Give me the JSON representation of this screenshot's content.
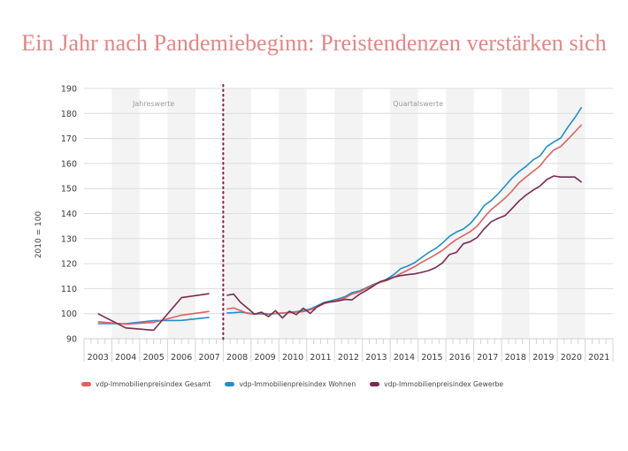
{
  "title": "Ein Jahr nach Pandemiebeginn: Preistendenzen verstärken sich",
  "chart_data": {
    "type": "line",
    "title": "Ein Jahr nach Pandemiebeginn: Preistendenzen verstärken sich",
    "ylabel": "2010 = 100",
    "xlabel": "",
    "ylim": [
      90,
      190
    ],
    "yticks": [
      90,
      100,
      110,
      120,
      130,
      140,
      150,
      160,
      170,
      180,
      190
    ],
    "xticks": [
      "2003",
      "2004",
      "2005",
      "2006",
      "2007",
      "2008",
      "2009",
      "2010",
      "2011",
      "2012",
      "2013",
      "2014",
      "2015",
      "2016",
      "2017",
      "2018",
      "2019",
      "2020",
      "2021"
    ],
    "grid": true,
    "legend_position": "bottom-left",
    "annotations": [
      "Jahreswerte",
      "Quartalswerte"
    ],
    "divider_after": "2007",
    "annual": {
      "x": [
        2003,
        2004,
        2005,
        2006,
        2007
      ],
      "series": [
        {
          "name": "vdp-Immobilienpreisindex Gesamt",
          "color": "#e06060",
          "values": [
            96.8,
            95.8,
            96.5,
            99.4,
            100.9
          ]
        },
        {
          "name": "vdp-Immobilienpreisindex Wohnen",
          "color": "#1e90c8",
          "values": [
            96.0,
            96.0,
            97.2,
            97.3,
            98.5
          ]
        },
        {
          "name": "vdp-Immobilienpreisindex Gewerbe",
          "color": "#7b2a50",
          "values": [
            100.0,
            94.3,
            93.4,
            106.4,
            108.0
          ]
        }
      ]
    },
    "quarterly": {
      "start": "2008 Q1",
      "series": [
        {
          "name": "vdp-Immobilienpreisindex Gesamt",
          "color": "#e06060",
          "values": [
            101.8,
            102.3,
            101.2,
            100.1,
            99.8,
            100.2,
            99.9,
            100.1,
            100.3,
            100.4,
            100.6,
            100.8,
            101.5,
            102.6,
            104.0,
            104.8,
            105.4,
            106.3,
            107.8,
            108.6,
            110.0,
            111.3,
            112.4,
            113.3,
            114.5,
            116.0,
            117.4,
            118.8,
            120.5,
            122.0,
            123.6,
            125.3,
            127.6,
            129.6,
            131.2,
            132.8,
            135.0,
            138.5,
            141.6,
            143.8,
            146.2,
            149.0,
            152.3,
            154.6,
            156.8,
            159.0,
            162.5,
            165.4,
            166.8,
            169.6,
            172.5,
            175.5
          ]
        },
        {
          "name": "vdp-Immobilienpreisindex Wohnen",
          "color": "#1e90c8",
          "values": [
            100.3,
            100.4,
            100.6,
            100.3,
            99.9,
            99.9,
            99.8,
            100.0,
            100.2,
            100.5,
            100.8,
            101.2,
            101.9,
            103.1,
            104.5,
            105.2,
            105.9,
            106.8,
            108.4,
            109.0,
            110.3,
            111.6,
            112.6,
            113.8,
            115.6,
            118.0,
            119.0,
            120.4,
            122.4,
            124.4,
            126.0,
            128.2,
            130.9,
            132.6,
            133.8,
            136.0,
            139.3,
            143.2,
            145.2,
            147.9,
            151.0,
            154.2,
            156.8,
            158.8,
            161.4,
            163.0,
            166.8,
            168.6,
            170.2,
            174.5,
            178.2,
            182.5
          ]
        },
        {
          "name": "vdp-Immobilienpreisindex Gewerbe",
          "color": "#7b2a50",
          "values": [
            107.3,
            107.8,
            104.5,
            102.2,
            99.8,
            100.6,
            98.8,
            101.2,
            98.3,
            101.0,
            99.6,
            102.2,
            100.1,
            102.8,
            104.3,
            104.7,
            105.1,
            105.7,
            105.5,
            107.6,
            109.2,
            110.9,
            112.8,
            113.5,
            114.6,
            115.2,
            115.6,
            115.9,
            116.5,
            117.2,
            118.4,
            120.3,
            123.6,
            124.5,
            127.9,
            128.8,
            130.5,
            133.9,
            136.7,
            138.1,
            139.2,
            142.0,
            145.0,
            147.4,
            149.3,
            151.0,
            153.6,
            155.0,
            154.6,
            154.6,
            154.6,
            152.5
          ]
        }
      ]
    }
  },
  "legend": [
    {
      "label": "vdp-Immobilienpreisindex Gesamt",
      "color": "#e06060"
    },
    {
      "label": "vdp-Immobilienpreisindex Wohnen",
      "color": "#1e90c8"
    },
    {
      "label": "vdp-Immobilienpreisindex Gewerbe",
      "color": "#7b2a50"
    }
  ]
}
